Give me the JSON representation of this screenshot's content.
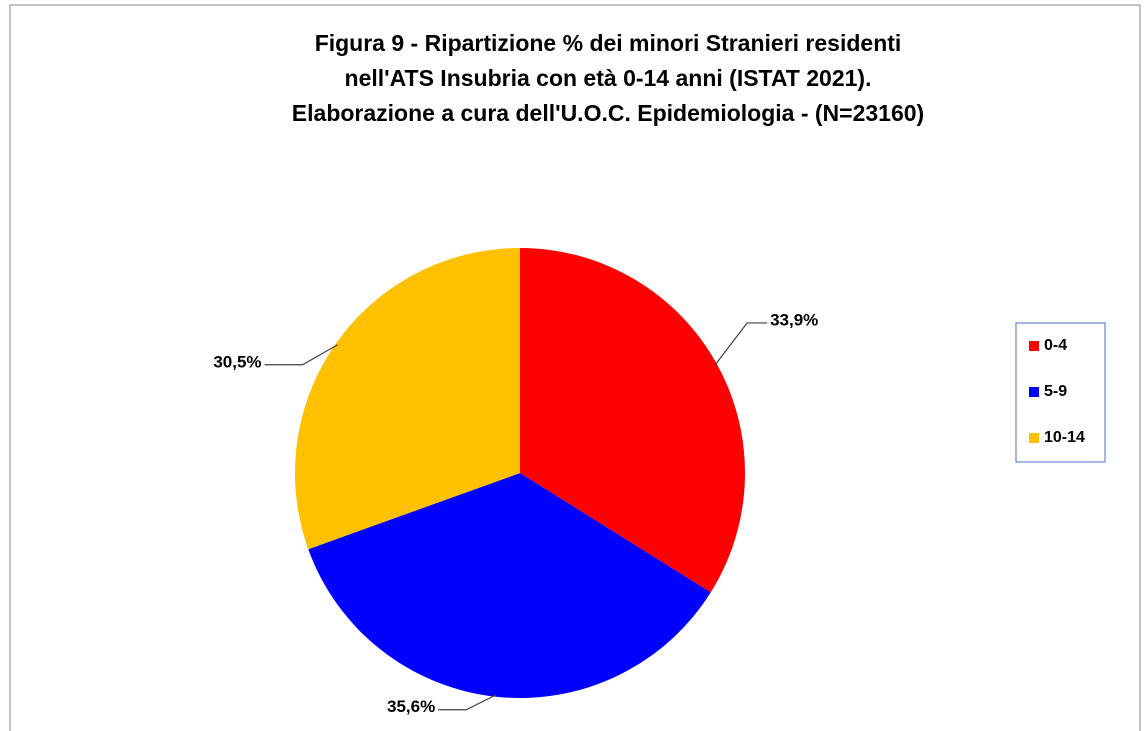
{
  "chart_data": {
    "type": "pie",
    "title": [
      "Figura 9 - Ripartizione % dei minori Stranieri residenti",
      "nell'ATS Insubria con età 0-14 anni (ISTAT 2021).",
      "Elaborazione a cura dell'U.O.C. Epidemiologia - (N=23160)"
    ],
    "categories": [
      "0-4",
      "5-9",
      "10-14"
    ],
    "values": [
      33.9,
      35.6,
      30.5
    ],
    "value_labels": [
      "33,9%",
      "35,6%",
      "30,5%"
    ],
    "colors": [
      "#ff0000",
      "#0000ff",
      "#ffc000"
    ],
    "legend": "right"
  }
}
